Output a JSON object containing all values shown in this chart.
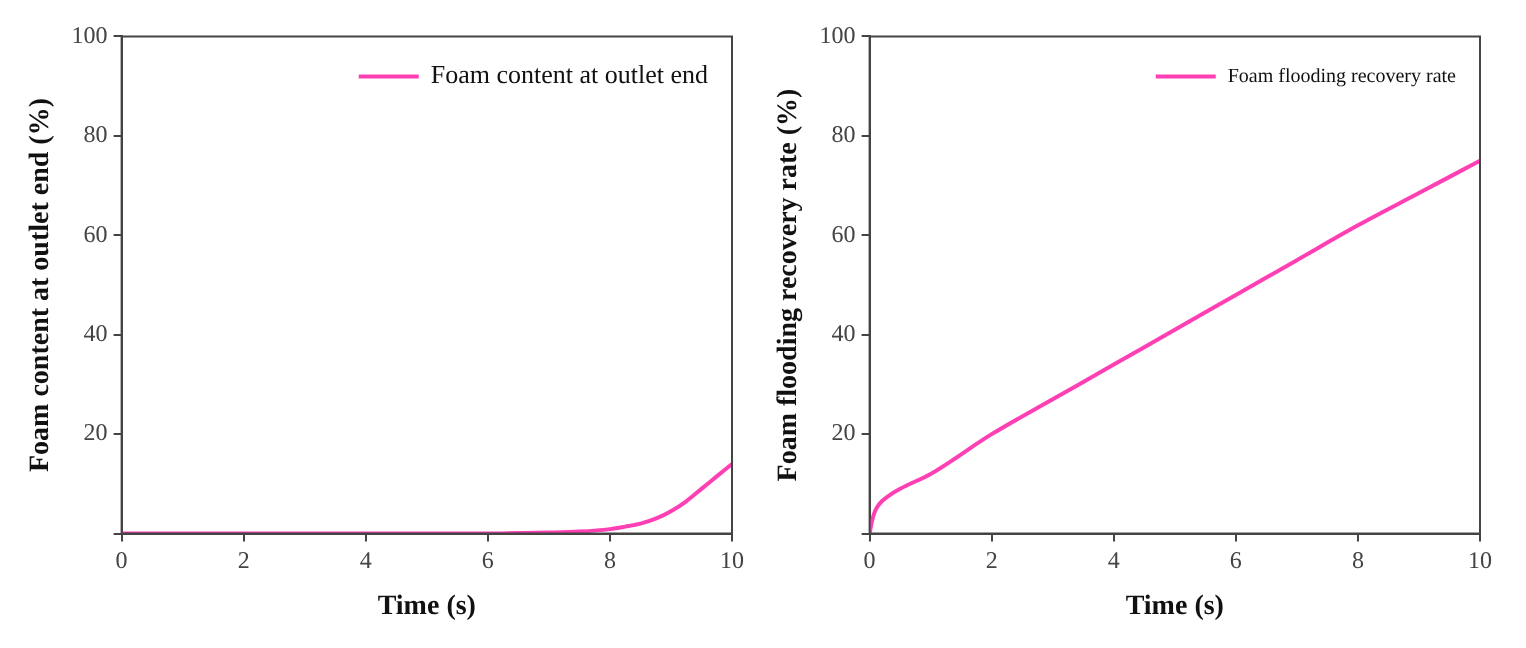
{
  "chart_data": [
    {
      "type": "line",
      "xlabel": "Time (s)",
      "ylabel": "Foam content at outlet end (%)",
      "x": [
        0,
        1,
        2,
        3,
        4,
        5,
        6,
        6.5,
        7,
        7.5,
        8,
        8.25,
        8.5,
        8.75,
        9,
        9.25,
        9.5,
        9.75,
        10
      ],
      "series": [
        {
          "name": "Foam content at outlet end",
          "color": "#ff3fb4",
          "values": [
            0,
            0,
            0,
            0,
            0,
            0,
            0,
            0.1,
            0.2,
            0.4,
            0.9,
            1.4,
            2,
            3,
            4.5,
            6.5,
            9,
            11.5,
            14
          ]
        }
      ],
      "xlim": [
        0,
        10
      ],
      "xticks": [
        0,
        2,
        4,
        6,
        8,
        10
      ],
      "ylim": [
        0,
        100
      ],
      "yticks": [
        {
          "value": 0,
          "label": null
        },
        20,
        40,
        60,
        80,
        100
      ],
      "grid": false,
      "legend": "top right",
      "marker": "none",
      "line_style": "solid"
    },
    {
      "type": "line",
      "xlabel": "Time (s)",
      "ylabel": "Foam flooding recovery rate (%)",
      "x": [
        0,
        0.03,
        0.06,
        0.1,
        0.15,
        0.2,
        0.3,
        0.5,
        1,
        2,
        3,
        4,
        5,
        6,
        7,
        8,
        9,
        10
      ],
      "series": [
        {
          "name": "Foam flooding recovery rate",
          "color": "#ff3fb4",
          "values": [
            0,
            2,
            3.5,
            4.8,
            5.8,
            6.5,
            7.5,
            9,
            12,
            20,
            27,
            34,
            41,
            48,
            55,
            62,
            68.5,
            75
          ]
        }
      ],
      "xlim": [
        0,
        10
      ],
      "xticks": [
        0,
        2,
        4,
        6,
        8,
        10
      ],
      "ylim": [
        0,
        100
      ],
      "yticks": [
        {
          "value": 0,
          "label": null
        },
        20,
        40,
        60,
        80,
        100
      ],
      "grid": false,
      "legend": "top right",
      "marker": "none",
      "line_style": "solid"
    }
  ]
}
